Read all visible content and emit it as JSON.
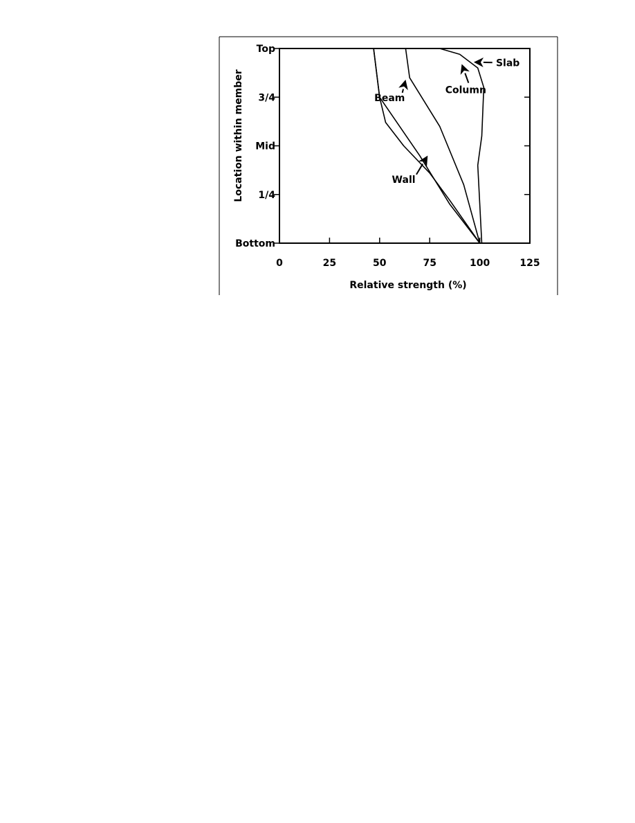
{
  "chart_data": {
    "type": "line",
    "title": "",
    "xlabel": "Relative strength (%)",
    "ylabel": "Location within member",
    "xlim": [
      0,
      125
    ],
    "x_ticks": [
      0,
      25,
      50,
      75,
      100,
      125
    ],
    "x_tick_labels": [
      "0",
      "25",
      "50",
      "75",
      "100",
      "125"
    ],
    "ylim": [
      0,
      1
    ],
    "y_ticks": [
      0,
      0.25,
      0.5,
      0.75,
      1
    ],
    "y_tick_labels": [
      "Bottom",
      "1/4",
      "Mid",
      "3/4",
      "Top"
    ],
    "grid": false,
    "legend": "none",
    "series": [
      {
        "name": "Beam",
        "points": [
          [
            100,
            0
          ],
          [
            85,
            0.2
          ],
          [
            70,
            0.45
          ],
          [
            50,
            0.75
          ],
          [
            47,
            1.0
          ]
        ],
        "label_anchor": [
          63,
          0.84
        ]
      },
      {
        "name": "Wall",
        "points": [
          [
            100,
            0
          ],
          [
            85,
            0.22
          ],
          [
            75,
            0.36
          ],
          [
            62,
            0.5
          ],
          [
            53,
            0.62
          ],
          [
            50,
            0.75
          ],
          [
            47,
            1.0
          ]
        ],
        "label_anchor": [
          74,
          0.45
        ]
      },
      {
        "name": "Column",
        "points": [
          [
            100,
            0
          ],
          [
            92,
            0.3
          ],
          [
            80,
            0.6
          ],
          [
            65,
            0.85
          ],
          [
            63,
            1.0
          ]
        ],
        "label_anchor": [
          91,
          0.92
        ]
      },
      {
        "name": "Slab",
        "points": [
          [
            101,
            0
          ],
          [
            99,
            0.4
          ],
          [
            101,
            0.55
          ],
          [
            102,
            0.8
          ],
          [
            99,
            0.9
          ],
          [
            90,
            0.97
          ],
          [
            80,
            1.0
          ]
        ],
        "label_anchor": [
          97,
          0.93
        ]
      }
    ],
    "annotations": [
      {
        "text": "Beam",
        "x": 55,
        "y": 0.73
      },
      {
        "text": "Wall",
        "x": 62,
        "y": 0.31
      },
      {
        "text": "Column",
        "x": 93,
        "y": 0.77
      },
      {
        "text": "Slab",
        "x": 114,
        "y": 0.91
      }
    ]
  }
}
